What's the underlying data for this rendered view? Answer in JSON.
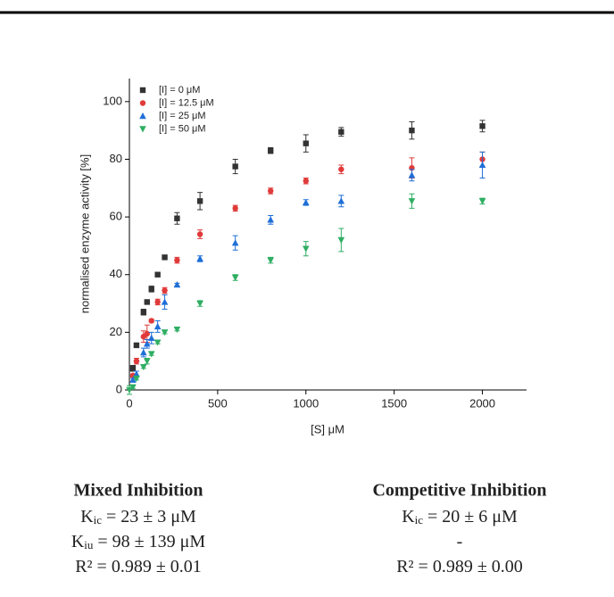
{
  "chart_data": {
    "type": "scatter",
    "x_label": "[S] μM",
    "y_label": "normalised enzyme activity [%]",
    "x": [
      0,
      20,
      40,
      80,
      100,
      125,
      160,
      200,
      270,
      400,
      600,
      800,
      1000,
      1200,
      1600,
      2000
    ],
    "xlim": [
      0,
      2250
    ],
    "ylim": [
      0,
      108
    ],
    "xticks": [
      0,
      500,
      1000,
      1500,
      2000
    ],
    "yticks": [
      0,
      20,
      40,
      60,
      80,
      100
    ],
    "legend": "upper left",
    "series": [
      {
        "name": "[I] = 0 μM",
        "color": "#333333",
        "marker": "square",
        "values": [
          null,
          7.5,
          15.5,
          27,
          30.5,
          35,
          40,
          46,
          59.5,
          65.5,
          77.5,
          83,
          85.5,
          89.5,
          90,
          91.5
        ],
        "errors": [
          null,
          1,
          0.5,
          1,
          0.5,
          1,
          0.5,
          0.5,
          2,
          3,
          2.5,
          1,
          3,
          1.5,
          3,
          2
        ]
      },
      {
        "name": "[I] = 12.5 μM",
        "color": "#e03a3a",
        "marker": "circle",
        "values": [
          null,
          5,
          10,
          18.5,
          19.5,
          24,
          30.5,
          34.5,
          45,
          54,
          63,
          69,
          72.5,
          76.5,
          77,
          80
        ],
        "errors": [
          null,
          0.5,
          1,
          2,
          3,
          0.5,
          1,
          1,
          1,
          1.5,
          1,
          1,
          1,
          1.5,
          3.5,
          2.5
        ]
      },
      {
        "name": "[I] = 25 μM",
        "color": "#1f6fd8",
        "marker": "triangle-up",
        "values": [
          null,
          3.5,
          5.5,
          13,
          16,
          18,
          22,
          30.5,
          36.5,
          45.5,
          51,
          59,
          65,
          65.5,
          74.5,
          78
        ],
        "errors": [
          null,
          0.5,
          1,
          1.5,
          1.5,
          2,
          2,
          2.5,
          0.5,
          1,
          2.5,
          1.5,
          1,
          2,
          2,
          4.5
        ]
      },
      {
        "name": "[I] = 50 μM",
        "color": "#2fae63",
        "marker": "triangle-down",
        "values": [
          0,
          1,
          4,
          8,
          10,
          12.5,
          16.5,
          20,
          21,
          30,
          39,
          45,
          49,
          52,
          65.5,
          65.5
        ],
        "errors": [
          1.5,
          0.5,
          0.5,
          0.5,
          1,
          0.5,
          0.5,
          0.5,
          0.5,
          1,
          1,
          1,
          2.5,
          4,
          2.5,
          1
        ]
      }
    ]
  },
  "stats": [
    {
      "title": "Mixed Inhibition",
      "lines": [
        {
          "symbol": "K",
          "subscript": "ic",
          "text": " = 23 ± 3 μM"
        },
        {
          "symbol": "K",
          "subscript": "iu",
          "text": " = 98 ± 139 μM"
        },
        {
          "text": "R² = 0.989 ± 0.01"
        }
      ]
    },
    {
      "title": "Competitive Inhibition",
      "lines": [
        {
          "symbol": "K",
          "subscript": "ic",
          "text": " = 20 ± 6 μM"
        },
        {
          "text": "-"
        },
        {
          "text": "R² = 0.989 ± 0.00"
        }
      ]
    }
  ]
}
